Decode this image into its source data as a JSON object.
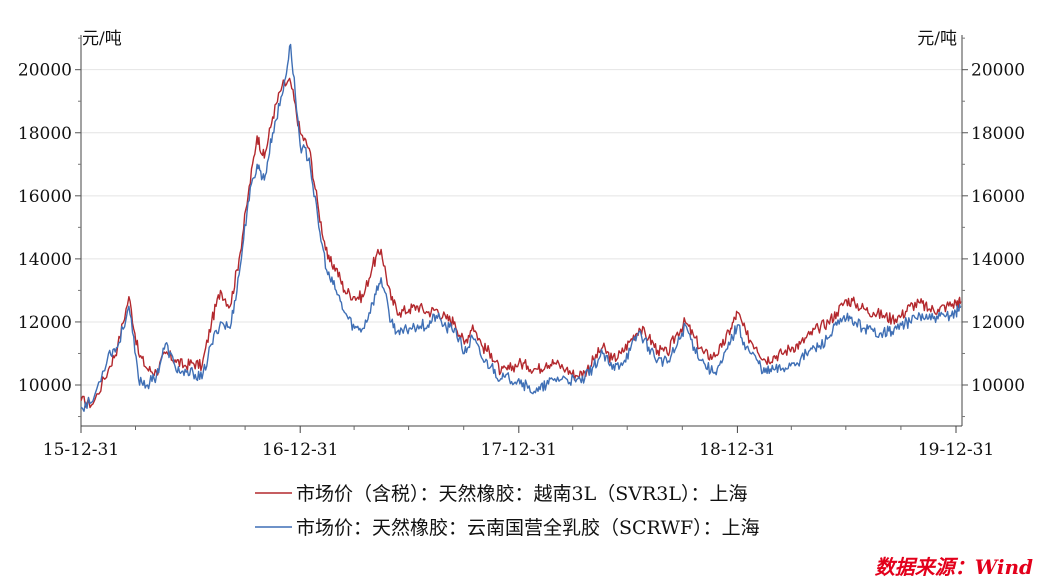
{
  "chart_data": {
    "type": "line",
    "y_unit_left": "元/吨",
    "y_unit_right": "元/吨",
    "x_ticks": [
      "15-12-31",
      "16-12-31",
      "17-12-31",
      "18-12-31",
      "19-12-31"
    ],
    "y_ticks": [
      "10000",
      "12000",
      "14000",
      "16000",
      "18000",
      "20000"
    ],
    "ylim": [
      8700,
      21100
    ],
    "xlim": [
      "2015-12-31",
      "2020-01-10"
    ],
    "grid": "horizontal",
    "legend_position": "bottom",
    "colors": {
      "red": "#b3282d",
      "blue": "#3f6fb5",
      "source": "#e3001b"
    },
    "series": [
      {
        "name": "市场价（含税）：天然橡胶：越南3L（SVR3L）：上海",
        "color": "#b3282d",
        "x": [
          "2015-12-31",
          "2016-01-20",
          "2016-02-15",
          "2016-03-01",
          "2016-03-20",
          "2016-04-05",
          "2016-04-20",
          "2016-05-05",
          "2016-05-20",
          "2016-06-05",
          "2016-06-20",
          "2016-07-05",
          "2016-07-20",
          "2016-08-05",
          "2016-08-20",
          "2016-09-05",
          "2016-09-20",
          "2016-10-05",
          "2016-10-20",
          "2016-11-01",
          "2016-11-15",
          "2016-12-01",
          "2016-12-15",
          "2016-12-31",
          "2017-01-15",
          "2017-01-31",
          "2017-02-15",
          "2017-03-01",
          "2017-03-15",
          "2017-04-01",
          "2017-04-15",
          "2017-05-01",
          "2017-05-15",
          "2017-06-01",
          "2017-06-15",
          "2017-07-01",
          "2017-07-15",
          "2017-08-01",
          "2017-08-15",
          "2017-09-01",
          "2017-09-15",
          "2017-10-01",
          "2017-10-15",
          "2017-11-01",
          "2017-11-15",
          "2017-12-01",
          "2017-12-15",
          "2017-12-31",
          "2018-01-15",
          "2018-02-01",
          "2018-02-15",
          "2018-03-01",
          "2018-03-20",
          "2018-04-05",
          "2018-04-20",
          "2018-05-05",
          "2018-05-20",
          "2018-06-05",
          "2018-06-20",
          "2018-07-05",
          "2018-07-20",
          "2018-08-05",
          "2018-08-20",
          "2018-09-05",
          "2018-09-20",
          "2018-10-05",
          "2018-10-20",
          "2018-11-05",
          "2018-11-20",
          "2018-12-05",
          "2018-12-20",
          "2018-12-31",
          "2019-01-15",
          "2019-02-01",
          "2019-02-15",
          "2019-03-01",
          "2019-03-15",
          "2019-04-01",
          "2019-04-15",
          "2019-05-01",
          "2019-05-15",
          "2019-06-01",
          "2019-06-15",
          "2019-07-01",
          "2019-07-15",
          "2019-08-01",
          "2019-08-15",
          "2019-09-01",
          "2019-09-15",
          "2019-10-01",
          "2019-10-15",
          "2019-11-01",
          "2019-11-15",
          "2019-12-01",
          "2019-12-15",
          "2019-12-31",
          "2020-01-08"
        ],
        "values": [
          9500,
          9400,
          10500,
          11200,
          12800,
          11000,
          10500,
          10400,
          11000,
          10800,
          10600,
          10700,
          10600,
          12000,
          13000,
          12500,
          14000,
          16000,
          17900,
          17200,
          18500,
          19500,
          19600,
          18000,
          17500,
          15500,
          14000,
          13700,
          13000,
          12800,
          12800,
          13800,
          14300,
          12700,
          12300,
          12400,
          12500,
          12300,
          12400,
          12100,
          12000,
          11300,
          11900,
          11200,
          11000,
          10400,
          10500,
          10700,
          10600,
          10500,
          10700,
          10700,
          10500,
          10300,
          10400,
          10800,
          11200,
          10800,
          11000,
          11400,
          11800,
          11500,
          11100,
          11000,
          11600,
          12000,
          11500,
          11000,
          10900,
          11200,
          11800,
          12300,
          11600,
          11200,
          10800,
          10900,
          11000,
          11200,
          11300,
          11600,
          11800,
          12000,
          12300,
          12700,
          12600,
          12400,
          12300,
          12200,
          12100,
          12200,
          12500,
          12600,
          12400,
          12400,
          12500,
          12600,
          12650
        ]
      },
      {
        "name": "市场价：天然橡胶：云南国营全乳胶（SCRWF）：上海",
        "color": "#3f6fb5",
        "x": [
          "2015-12-31",
          "2016-01-20",
          "2016-02-15",
          "2016-03-01",
          "2016-03-20",
          "2016-04-05",
          "2016-04-20",
          "2016-05-05",
          "2016-05-20",
          "2016-06-05",
          "2016-06-20",
          "2016-07-05",
          "2016-07-20",
          "2016-08-05",
          "2016-08-20",
          "2016-09-05",
          "2016-09-20",
          "2016-10-05",
          "2016-10-20",
          "2016-11-01",
          "2016-11-15",
          "2016-12-01",
          "2016-12-15",
          "2016-12-31",
          "2017-01-15",
          "2017-01-31",
          "2017-02-15",
          "2017-03-01",
          "2017-03-15",
          "2017-04-01",
          "2017-04-15",
          "2017-05-01",
          "2017-05-15",
          "2017-06-01",
          "2017-06-15",
          "2017-07-01",
          "2017-07-15",
          "2017-08-01",
          "2017-08-15",
          "2017-09-01",
          "2017-09-15",
          "2017-10-01",
          "2017-10-15",
          "2017-11-01",
          "2017-11-15",
          "2017-12-01",
          "2017-12-15",
          "2017-12-31",
          "2018-01-15",
          "2018-02-01",
          "2018-02-15",
          "2018-03-01",
          "2018-03-20",
          "2018-04-05",
          "2018-04-20",
          "2018-05-05",
          "2018-05-20",
          "2018-06-05",
          "2018-06-20",
          "2018-07-05",
          "2018-07-20",
          "2018-08-05",
          "2018-08-20",
          "2018-09-05",
          "2018-09-20",
          "2018-10-05",
          "2018-10-20",
          "2018-11-05",
          "2018-11-20",
          "2018-12-05",
          "2018-12-20",
          "2018-12-31",
          "2019-01-15",
          "2019-02-01",
          "2019-02-15",
          "2019-03-01",
          "2019-03-15",
          "2019-04-01",
          "2019-04-15",
          "2019-05-01",
          "2019-05-15",
          "2019-06-01",
          "2019-06-15",
          "2019-07-01",
          "2019-07-15",
          "2019-08-01",
          "2019-08-15",
          "2019-09-01",
          "2019-09-15",
          "2019-10-01",
          "2019-10-15",
          "2019-11-01",
          "2019-11-15",
          "2019-12-01",
          "2019-12-15",
          "2019-12-31",
          "2020-01-08"
        ],
        "values": [
          9300,
          9500,
          11000,
          11200,
          12500,
          10200,
          10000,
          10300,
          11300,
          10600,
          10300,
          10400,
          10200,
          11300,
          12000,
          11800,
          13500,
          15800,
          17000,
          16500,
          18000,
          19200,
          20800,
          17600,
          17200,
          15000,
          13500,
          13000,
          12300,
          11800,
          11800,
          12600,
          13400,
          12000,
          11600,
          11800,
          11900,
          11900,
          12200,
          11800,
          11800,
          11000,
          11500,
          10800,
          10600,
          10200,
          10200,
          10200,
          9900,
          9800,
          10000,
          10200,
          10200,
          10100,
          10200,
          10600,
          11000,
          10500,
          10700,
          11100,
          11700,
          11200,
          10800,
          10700,
          11200,
          11900,
          11200,
          10700,
          10400,
          10700,
          11400,
          11900,
          11200,
          10800,
          10400,
          10500,
          10500,
          10700,
          10800,
          11100,
          11200,
          11500,
          11900,
          12100,
          12000,
          11800,
          11700,
          11700,
          11700,
          11900,
          12000,
          12200,
          12100,
          12100,
          12200,
          12300,
          12500
        ]
      }
    ],
    "source": "数据来源：Wind"
  }
}
